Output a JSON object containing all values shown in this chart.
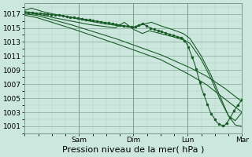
{
  "bg_color": "#cce8de",
  "plot_bg_color": "#cce8de",
  "grid_color": "#b0ccbf",
  "line_color": "#1a5c28",
  "ylim": [
    1000.0,
    1018.5
  ],
  "yticks": [
    1001,
    1003,
    1005,
    1007,
    1009,
    1011,
    1013,
    1015,
    1017
  ],
  "xlabel": "Pression niveau de la mer( hPa )",
  "xlabel_fontsize": 8,
  "tick_fontsize": 6.5,
  "figsize": [
    3.2,
    2.0
  ],
  "dpi": 100,
  "total_hours": 96,
  "day_ticks": [
    0,
    24,
    48,
    72,
    96
  ],
  "day_labels": [
    "",
    "Sam",
    "Dim",
    "Lun",
    "Mar"
  ]
}
